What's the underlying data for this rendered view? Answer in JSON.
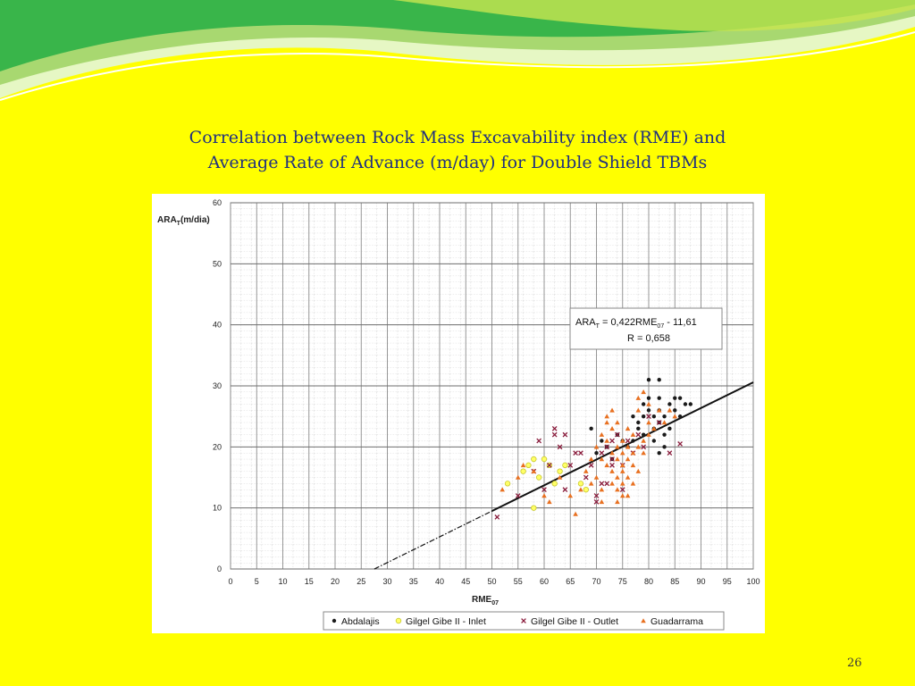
{
  "slide": {
    "title_line1": "Correlation between Rock Mass Excavability index (RME) and",
    "title_line2": "Average Rate of Advance (m/day) for Double Shield TBMs",
    "page_number": "26"
  },
  "colors": {
    "background": "#ffff00",
    "title": "#1f2f80",
    "wave_dark": "#39b54a",
    "wave_light": "#a8d870",
    "wave_pale": "#e6f7c4"
  },
  "chart_data": {
    "type": "scatter",
    "ylabel_main": "ARA",
    "ylabel_sub": "T",
    "ylabel_rest": "(m/dia)",
    "xlabel_main": "RME",
    "xlabel_sub": "07",
    "xlim": [
      0,
      100
    ],
    "ylim": [
      0,
      60
    ],
    "xticks": [
      0,
      5,
      10,
      15,
      20,
      25,
      30,
      35,
      40,
      45,
      50,
      55,
      60,
      65,
      70,
      75,
      80,
      85,
      90,
      95,
      100
    ],
    "yticks": [
      0,
      10,
      20,
      30,
      40,
      50,
      60
    ],
    "grid": true,
    "legend_position": "bottom",
    "equation_line1": "ARA",
    "equation_line1_sub": "T",
    "equation_line1_mid": " = 0,422RME",
    "equation_line1_sub2": "07",
    "equation_line1_end": " - 11,61",
    "equation_line2": "R = 0,658",
    "regression": {
      "slope": 0.422,
      "intercept": -11.61,
      "solid_from": 50,
      "solid_to": 100,
      "dashed_from": 27.5,
      "dashed_to": 50
    },
    "series": [
      {
        "name": "Abdalajis",
        "marker": "dot",
        "color": "#1a1a1a",
        "points": [
          [
            69,
            23
          ],
          [
            70,
            19
          ],
          [
            71,
            21
          ],
          [
            72,
            20
          ],
          [
            73,
            18
          ],
          [
            74,
            22
          ],
          [
            75,
            21
          ],
          [
            76,
            20
          ],
          [
            77,
            21
          ],
          [
            78,
            23
          ],
          [
            79,
            22
          ],
          [
            79,
            27
          ],
          [
            79,
            25
          ],
          [
            80,
            31
          ],
          [
            80,
            28
          ],
          [
            80,
            26
          ],
          [
            81,
            25
          ],
          [
            81,
            23
          ],
          [
            81,
            21
          ],
          [
            82,
            31
          ],
          [
            82,
            28
          ],
          [
            82,
            26
          ],
          [
            82,
            24
          ],
          [
            83,
            25
          ],
          [
            83,
            22
          ],
          [
            84,
            27
          ],
          [
            84,
            23
          ],
          [
            85,
            28
          ],
          [
            85,
            26
          ],
          [
            86,
            28
          ],
          [
            86,
            25
          ],
          [
            87,
            27
          ],
          [
            88,
            27
          ],
          [
            82,
            19
          ],
          [
            83,
            20
          ],
          [
            77,
            25
          ],
          [
            78,
            24
          ]
        ]
      },
      {
        "name": "Gilgel Gibe II - Inlet",
        "marker": "circle",
        "color": "#e5e54a",
        "points": [
          [
            53,
            14
          ],
          [
            56,
            16
          ],
          [
            57,
            17
          ],
          [
            58,
            18
          ],
          [
            58,
            10
          ],
          [
            59,
            15
          ],
          [
            60,
            18
          ],
          [
            61,
            17
          ],
          [
            62,
            14
          ],
          [
            63,
            16
          ],
          [
            64,
            17
          ],
          [
            67,
            14
          ],
          [
            68,
            13
          ]
        ]
      },
      {
        "name": "Gilgel Gibe II - Outlet",
        "marker": "cross",
        "color": "#8a1c3c",
        "points": [
          [
            51,
            8.5
          ],
          [
            55,
            12
          ],
          [
            58,
            16
          ],
          [
            59,
            21
          ],
          [
            60,
            13
          ],
          [
            61,
            17
          ],
          [
            62,
            23
          ],
          [
            62,
            22
          ],
          [
            63,
            20
          ],
          [
            64,
            22
          ],
          [
            64,
            13
          ],
          [
            65,
            17
          ],
          [
            66,
            19
          ],
          [
            67,
            19
          ],
          [
            68,
            15
          ],
          [
            69,
            17
          ],
          [
            70,
            12
          ],
          [
            70,
            11
          ],
          [
            71,
            14
          ],
          [
            71,
            19
          ],
          [
            72,
            20
          ],
          [
            72,
            14
          ],
          [
            73,
            18
          ],
          [
            73,
            17
          ],
          [
            74,
            22
          ],
          [
            75,
            13
          ],
          [
            76,
            21
          ],
          [
            77,
            19
          ],
          [
            78,
            22
          ],
          [
            79,
            20
          ],
          [
            80,
            25
          ],
          [
            82,
            24
          ],
          [
            84,
            19
          ],
          [
            86,
            20.5
          ],
          [
            75,
            17
          ],
          [
            73,
            21
          ]
        ]
      },
      {
        "name": "Guadarrama",
        "marker": "triangle",
        "color": "#e87020",
        "points": [
          [
            52,
            13
          ],
          [
            55,
            15
          ],
          [
            56,
            17
          ],
          [
            58,
            16
          ],
          [
            60,
            12
          ],
          [
            61,
            11
          ],
          [
            63,
            15
          ],
          [
            65,
            12
          ],
          [
            66,
            9
          ],
          [
            67,
            13
          ],
          [
            68,
            16
          ],
          [
            69,
            14
          ],
          [
            69,
            18
          ],
          [
            70,
            20
          ],
          [
            70,
            15
          ],
          [
            71,
            22
          ],
          [
            71,
            18
          ],
          [
            71,
            13
          ],
          [
            72,
            21
          ],
          [
            72,
            17
          ],
          [
            72,
            25
          ],
          [
            73,
            19
          ],
          [
            73,
            16
          ],
          [
            73,
            14
          ],
          [
            73,
            23
          ],
          [
            74,
            20
          ],
          [
            74,
            18
          ],
          [
            74,
            15
          ],
          [
            74,
            13
          ],
          [
            74,
            24
          ],
          [
            75,
            21
          ],
          [
            75,
            19
          ],
          [
            75,
            17
          ],
          [
            75,
            16
          ],
          [
            75,
            14
          ],
          [
            75,
            12
          ],
          [
            76,
            20
          ],
          [
            76,
            18
          ],
          [
            76,
            15
          ],
          [
            76,
            23
          ],
          [
            77,
            17
          ],
          [
            77,
            19
          ],
          [
            77,
            14
          ],
          [
            77,
            22
          ],
          [
            78,
            20
          ],
          [
            78,
            16
          ],
          [
            78,
            26
          ],
          [
            79,
            21
          ],
          [
            79,
            29
          ],
          [
            79,
            19
          ],
          [
            80,
            24
          ],
          [
            80,
            22
          ],
          [
            80,
            27
          ],
          [
            81,
            23
          ],
          [
            82,
            26
          ],
          [
            83,
            24
          ],
          [
            84,
            26
          ],
          [
            85,
            25
          ],
          [
            71,
            11
          ],
          [
            72,
            24
          ],
          [
            74,
            11
          ],
          [
            76,
            12
          ],
          [
            78,
            28
          ],
          [
            73,
            26
          ]
        ]
      }
    ]
  }
}
